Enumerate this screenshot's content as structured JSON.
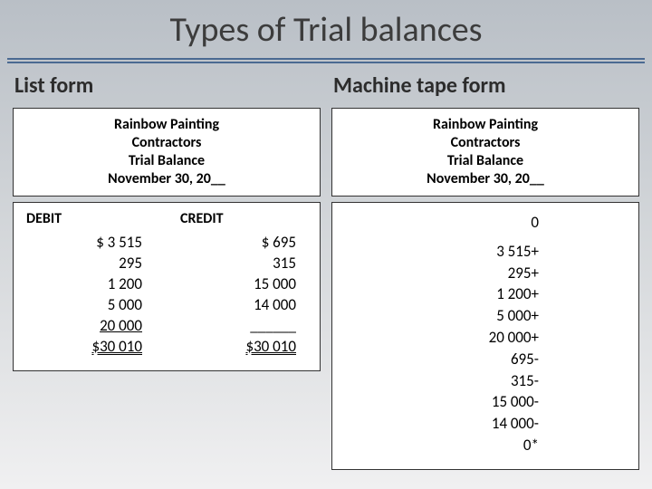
{
  "title": "Types of Trial balances",
  "left": {
    "heading": "List form",
    "header": {
      "line1": "Rainbow Painting",
      "line2": "Contractors",
      "line3": "Trial Balance",
      "line4": "November 30, 20__"
    },
    "debit": {
      "label": "DEBIT",
      "rows": [
        "$ 3 515",
        "295",
        "1 200",
        "5 000"
      ],
      "last": "20 000",
      "total": "$30 010"
    },
    "credit": {
      "label": "CREDIT",
      "rows": [
        "$ 695",
        "315",
        "15 000",
        "14 000"
      ],
      "rule": "______",
      "total": "$30 010"
    }
  },
  "right": {
    "heading": "Machine tape form",
    "header": {
      "line1": "Rainbow Painting",
      "line2": "Contractors",
      "line3": "Trial Balance",
      "line4": "November 30, 20__"
    },
    "tape": {
      "start": "0",
      "rows": [
        "3 515+",
        "295+",
        "1 200+",
        "5 000+",
        "20 000+",
        "695-",
        "315-",
        "15 000-",
        "14 000-",
        "0*"
      ]
    }
  }
}
